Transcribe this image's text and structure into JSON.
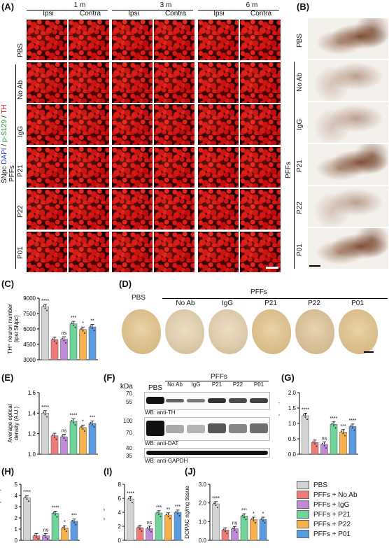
{
  "panels": {
    "A": "(A)",
    "B": "(B)",
    "C": "(C)",
    "D": "(D)",
    "E": "(E)",
    "F": "(F)",
    "G": "(G)",
    "H": "(H)",
    "I": "(I)",
    "J": "(J)"
  },
  "panelA": {
    "timepoints": [
      "1 m",
      "3 m",
      "6 m"
    ],
    "sides": [
      "Ipsi",
      "Contra"
    ],
    "rows": [
      "PBS",
      "No Ab",
      "IgG",
      "P21",
      "P22",
      "P01"
    ],
    "group_label": "PFFs",
    "stain_label": {
      "prefix": "SNpc ",
      "dapi": "DAPI",
      "sep1": " / ",
      "ps129": "p-S129",
      "sep2": " / ",
      "th": "TH"
    }
  },
  "panelB": {
    "rows": [
      "PBS",
      "No Ab",
      "IgG",
      "P21",
      "P22",
      "P01"
    ],
    "group_label": "PFFs"
  },
  "panelD": {
    "pbs": "PBS",
    "group_label": "PFFs",
    "groups": [
      "No Ab",
      "IgG",
      "P21",
      "P22",
      "P01"
    ]
  },
  "panelF": {
    "kda": "kDa",
    "pbs": "PBS",
    "group_label": "PFFs",
    "groups": [
      "No Ab",
      "IgG",
      "P21",
      "P22",
      "P01"
    ],
    "markers_th": [
      "70",
      "55"
    ],
    "markers_dat": [
      "100",
      "70"
    ],
    "markers_gapdh": [
      "40",
      "35"
    ],
    "wb_th": "WB: anti-TH",
    "wb_dat": "WB: anti-DAT",
    "wb_gapdh": "WB: anti-GAPDH"
  },
  "colors": {
    "PBS": "#d3d3d3",
    "No Ab": "#f07a7a",
    "IgG": "#c08ad9",
    "P21": "#6fd39a",
    "P22": "#f6b04c",
    "P01": "#5b9be0"
  },
  "legend": [
    {
      "label": "PBS",
      "color": "#d3d3d3"
    },
    {
      "label": "PFFs + No Ab",
      "color": "#f07a7a"
    },
    {
      "label": "PFFs + IgG",
      "color": "#c08ad9"
    },
    {
      "label": "PFFs + P21",
      "color": "#6fd39a"
    },
    {
      "label": "PFFs + P22",
      "color": "#f6b04c"
    },
    {
      "label": "PFFs + P01",
      "color": "#5b9be0"
    }
  ],
  "chart_data": [
    {
      "id": "C",
      "type": "bar",
      "categories": [
        "PBS",
        "PFFs + No Ab",
        "PFFs + IgG",
        "PFFs + P21",
        "PFFs + P22",
        "PFFs + P01"
      ],
      "values": [
        8150,
        4950,
        5000,
        6500,
        5950,
        6200
      ],
      "ylim": [
        3000,
        9000
      ],
      "yticks": [
        "3000",
        "4500",
        "6000",
        "7500",
        "9000"
      ],
      "ylabel": "TH⁺ neuron number\n(ipsi SNpc)",
      "sig": [
        "****",
        "",
        "ns",
        "***",
        "*",
        "**"
      ]
    },
    {
      "id": "E",
      "type": "bar",
      "categories": [
        "PBS",
        "PFFs + No Ab",
        "PFFs + IgG",
        "PFFs + P21",
        "PFFs + P22",
        "PFFs + P01"
      ],
      "values": [
        1.4,
        1.18,
        1.17,
        1.32,
        1.26,
        1.3
      ],
      "ylim": [
        1.0,
        1.6
      ],
      "yticks": [
        "1.0",
        "1.2",
        "1.4",
        "1.6"
      ],
      "ylabel": "Average optical\ndensity (A.U.)",
      "sig": [
        "****",
        "",
        "ns",
        "****",
        "*",
        "***"
      ]
    },
    {
      "id": "G",
      "type": "bar",
      "categories": [
        "PBS",
        "PFFs + No Ab",
        "PFFs + IgG",
        "PFFs + P21",
        "PFFs + P22",
        "PFFs + P01"
      ],
      "values": [
        1.25,
        0.38,
        0.32,
        0.97,
        0.72,
        0.9
      ],
      "ylim": [
        0.0,
        2.0
      ],
      "yticks": [
        "0.0",
        "0.5",
        "1.0",
        "1.5",
        "2.0"
      ],
      "ylabel": "TH content (A.U.)",
      "sig": [
        "****",
        "",
        "ns",
        "****",
        "***",
        "****"
      ]
    },
    {
      "id": "H",
      "type": "bar",
      "categories": [
        "PBS",
        "PFFs + No Ab",
        "PFFs + IgG",
        "PFFs + P21",
        "PFFs + P22",
        "PFFs + P01"
      ],
      "values": [
        3.8,
        0.4,
        0.4,
        2.4,
        1.1,
        1.7
      ],
      "ylim": [
        0,
        5
      ],
      "yticks": [
        "0",
        "1",
        "2",
        "3",
        "4",
        "5"
      ],
      "ylabel": "DAT content (A.U.)",
      "sig": [
        "****",
        "",
        "ns",
        "****",
        "*",
        "***"
      ]
    },
    {
      "id": "I",
      "type": "bar",
      "categories": [
        "PBS",
        "PFFs + No Ab",
        "PFFs + IgG",
        "PFFs + P21",
        "PFFs + P22",
        "PFFs + P01"
      ],
      "values": [
        5.9,
        1.8,
        1.7,
        3.9,
        3.6,
        4.0
      ],
      "ylim": [
        0,
        8
      ],
      "yticks": [
        "0",
        "2",
        "4",
        "6",
        "8"
      ],
      "ylabel": "DA ng/mg tissue",
      "sig": [
        "****",
        "",
        "ns",
        "***",
        "**",
        "***"
      ]
    },
    {
      "id": "J",
      "type": "bar",
      "categories": [
        "PBS",
        "PFFs + No Ab",
        "PFFs + IgG",
        "PFFs + P21",
        "PFFs + P22",
        "PFFs + P01"
      ],
      "values": [
        1.95,
        0.55,
        0.62,
        1.3,
        1.12,
        1.12
      ],
      "ylim": [
        0.0,
        3.0
      ],
      "yticks": [
        "0.0",
        "1.0",
        "2.0",
        "3.0"
      ],
      "ylabel": "DOPAC ng/mg tissue",
      "sig": [
        "****",
        "",
        "ns",
        "***",
        "*",
        "*"
      ]
    }
  ]
}
